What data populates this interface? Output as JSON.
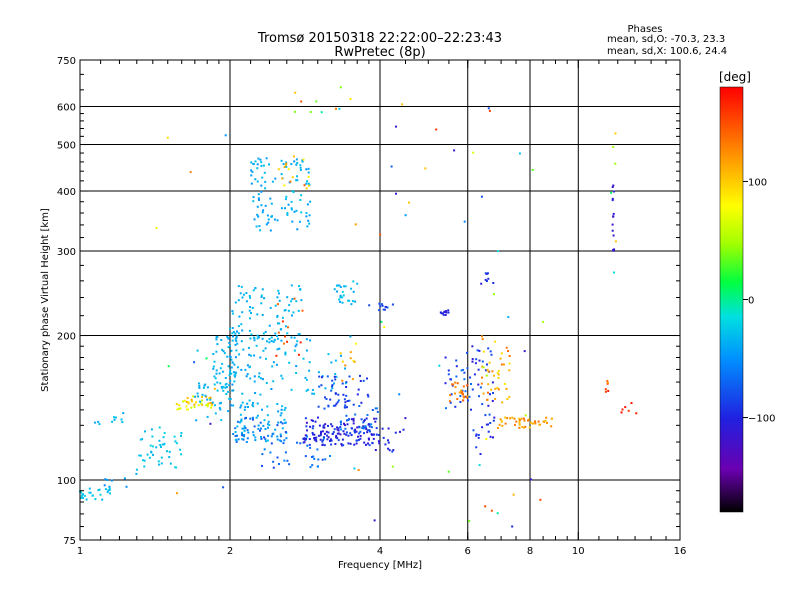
{
  "chart_data": {
    "type": "scatter",
    "title": "Tromsø 20150318 22:22:00–22:23:43",
    "subtitle": "RwPretec (8p)",
    "xlabel": "Frequency [MHz]",
    "ylabel": "Stationary phase Virtual Height [km]",
    "x_scale": "log",
    "y_scale": "log",
    "xlim": [
      1,
      16
    ],
    "ylim": [
      75,
      750
    ],
    "xticks": [
      1,
      2,
      4,
      6,
      8,
      10,
      16
    ],
    "yticks": [
      75,
      100,
      200,
      300,
      400,
      500,
      600,
      750
    ],
    "xgrid": [
      2,
      4,
      6,
      8,
      10
    ],
    "ygrid": [
      100,
      200,
      300,
      400,
      500,
      600
    ],
    "grid": true,
    "stats": {
      "heading": "Phases",
      "line_o": "mean, sd,O: -70.3, 23.3",
      "line_x": "mean, sd,X: 100.6, 24.4"
    },
    "colorbar": {
      "label": "[deg]",
      "range": [
        -180,
        180
      ],
      "ticks": [
        100,
        0,
        -100
      ],
      "tick_labels": [
        "100",
        "0",
        "−100"
      ]
    },
    "clusters": [
      {
        "x": [
          1.0,
          1.15
        ],
        "y": [
          91,
          96
        ],
        "phase": [
          -20,
          -40
        ],
        "n": 25
      },
      {
        "x": [
          1.1,
          1.3
        ],
        "y": [
          95,
          103
        ],
        "phase": [
          -40,
          -70
        ],
        "n": 8
      },
      {
        "x": [
          1.05,
          1.25
        ],
        "y": [
          130,
          140
        ],
        "phase": [
          -30,
          -50
        ],
        "n": 10
      },
      {
        "x": [
          1.3,
          1.6
        ],
        "y": [
          105,
          130
        ],
        "phase": [
          -20,
          -40
        ],
        "n": 45
      },
      {
        "x": [
          1.55,
          1.85
        ],
        "y": [
          140,
          150
        ],
        "phase": [
          60,
          130
        ],
        "n": 40
      },
      {
        "x": [
          1.7,
          2.0
        ],
        "y": [
          130,
          160
        ],
        "phase": [
          -30,
          -50
        ],
        "n": 35
      },
      {
        "x": [
          1.85,
          2.05
        ],
        "y": [
          150,
          200
        ],
        "phase": [
          -30,
          -50
        ],
        "n": 50
      },
      {
        "x": [
          2.0,
          2.6
        ],
        "y": [
          120,
          135
        ],
        "phase": [
          -30,
          -90
        ],
        "n": 80
      },
      {
        "x": [
          2.0,
          2.6
        ],
        "y": [
          135,
          205
        ],
        "phase": [
          -30,
          -60
        ],
        "n": 100
      },
      {
        "x": [
          2.0,
          2.8
        ],
        "y": [
          190,
          255
        ],
        "phase": [
          -30,
          -50
        ],
        "n": 90
      },
      {
        "x": [
          2.2,
          2.9
        ],
        "y": [
          330,
          470
        ],
        "phase": [
          -30,
          -60
        ],
        "n": 110
      },
      {
        "x": [
          2.5,
          2.9
        ],
        "y": [
          400,
          480
        ],
        "phase": [
          80,
          150
        ],
        "n": 15
      },
      {
        "x": [
          2.4,
          2.8
        ],
        "y": [
          180,
          240
        ],
        "phase": [
          120,
          170
        ],
        "n": 12
      },
      {
        "x": [
          2.3,
          3.2
        ],
        "y": [
          105,
          125
        ],
        "phase": [
          -100,
          -60
        ],
        "n": 40
      },
      {
        "x": [
          2.6,
          3.5
        ],
        "y": [
          150,
          200
        ],
        "phase": [
          -30,
          -60
        ],
        "n": 35
      },
      {
        "x": [
          2.8,
          4.0
        ],
        "y": [
          118,
          135
        ],
        "phase": [
          -90,
          -130
        ],
        "n": 150
      },
      {
        "x": [
          3.0,
          3.8
        ],
        "y": [
          140,
          165
        ],
        "phase": [
          -80,
          -110
        ],
        "n": 50
      },
      {
        "x": [
          3.3,
          4.0
        ],
        "y": [
          125,
          145
        ],
        "phase": [
          -60,
          -90
        ],
        "n": 25
      },
      {
        "x": [
          3.2,
          3.6
        ],
        "y": [
          230,
          260
        ],
        "phase": [
          -20,
          -50
        ],
        "n": 25
      },
      {
        "x": [
          3.3,
          3.6
        ],
        "y": [
          160,
          200
        ],
        "phase": [
          80,
          130
        ],
        "n": 10
      },
      {
        "x": [
          3.8,
          4.3
        ],
        "y": [
          225,
          235
        ],
        "phase": [
          -80,
          -110
        ],
        "n": 12
      },
      {
        "x": [
          3.9,
          4.5
        ],
        "y": [
          110,
          135
        ],
        "phase": [
          -90,
          -120
        ],
        "n": 15
      },
      {
        "x": [
          5.2,
          5.5
        ],
        "y": [
          220,
          226
        ],
        "phase": [
          -100,
          -120
        ],
        "n": 12
      },
      {
        "x": [
          5.4,
          6.1
        ],
        "y": [
          140,
          185
        ],
        "phase": [
          -70,
          -110
        ],
        "n": 30
      },
      {
        "x": [
          5.5,
          6.0
        ],
        "y": [
          145,
          160
        ],
        "phase": [
          110,
          150
        ],
        "n": 25
      },
      {
        "x": [
          6.1,
          6.8
        ],
        "y": [
          110,
          190
        ],
        "phase": [
          -80,
          -120
        ],
        "n": 45
      },
      {
        "x": [
          6.4,
          7.3
        ],
        "y": [
          145,
          200
        ],
        "phase": [
          90,
          140
        ],
        "n": 40
      },
      {
        "x": [
          6.8,
          8.9
        ],
        "y": [
          128,
          135
        ],
        "phase": [
          100,
          140
        ],
        "n": 45
      },
      {
        "x": [
          6.3,
          6.8
        ],
        "y": [
          250,
          270
        ],
        "phase": [
          -90,
          -120
        ],
        "n": 8
      },
      {
        "x": [
          11.7,
          11.8
        ],
        "y": [
          300,
          420
        ],
        "phase": [
          -110,
          -130
        ],
        "n": 14
      },
      {
        "x": [
          11.6,
          11.9
        ],
        "y": [
          230,
          600
        ],
        "phase": [
          -20,
          180
        ],
        "n": 6
      },
      {
        "x": [
          11.3,
          11.8
        ],
        "y": [
          150,
          170
        ],
        "phase": [
          120,
          170
        ],
        "n": 6
      },
      {
        "x": [
          12.0,
          13.2
        ],
        "y": [
          130,
          145
        ],
        "phase": [
          150,
          180
        ],
        "n": 6
      },
      {
        "x": [
          2.6,
          3.5
        ],
        "y": [
          580,
          660
        ],
        "phase": [
          -40,
          150
        ],
        "n": 10
      },
      {
        "x": [
          3.5,
          8.5
        ],
        "y": [
          80,
          620
        ],
        "phase": [
          -130,
          160
        ],
        "n": 45
      },
      {
        "x": [
          1.4,
          2.5
        ],
        "y": [
          82,
          600
        ],
        "phase": [
          -130,
          160
        ],
        "n": 12
      }
    ]
  }
}
